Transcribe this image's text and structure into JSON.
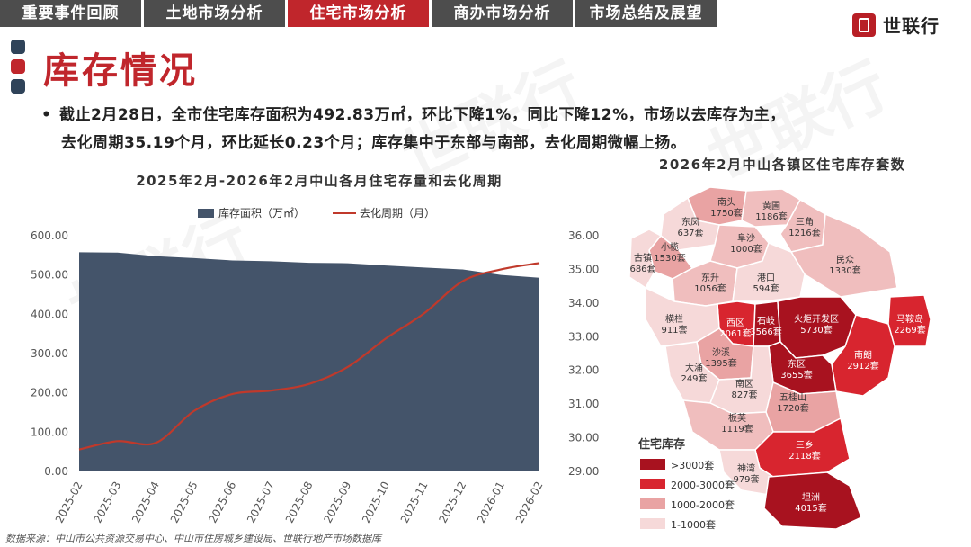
{
  "tabs": [
    {
      "label": "重要事件回顾",
      "active": false
    },
    {
      "label": "土地市场分析",
      "active": false
    },
    {
      "label": "住宅市场分析",
      "active": true
    },
    {
      "label": "商办市场分析",
      "active": false
    },
    {
      "label": "市场总结及展望",
      "active": false
    }
  ],
  "brand": "世联行",
  "page_title": "库存情况",
  "bullet": {
    "line1": "截止2月28日，全市住宅库存面积为492.83万㎡，环比下降1%，同比下降12%，市场以去库存为主，",
    "line2": "去化周期35.19个月，环比延长0.23个月；库存集中于东部与南部，去化周期微幅上扬。"
  },
  "source": "数据来源：中山市公共资源交易中心、中山市住房城乡建设局、世联行地产市场数据库",
  "colors": {
    "accent": "#c0262c",
    "area": "#44546a",
    "line": "#c0392b",
    "tab_bg": "#4d4d4d"
  },
  "chart_data": {
    "type": "area",
    "title": "2025年2月-2026年2月中山各月住宅存量和去化周期",
    "categories": [
      "2025-02",
      "2025-03",
      "2025-04",
      "2025-05",
      "2025-06",
      "2025-07",
      "2025-08",
      "2025-09",
      "2025-10",
      "2025-11",
      "2025-12",
      "2026-01",
      "2026-02"
    ],
    "series": [
      {
        "name": "库存面积（万㎡）",
        "type": "area",
        "axis": "left",
        "values": [
          558,
          557,
          548,
          543,
          537,
          535,
          531,
          530,
          524,
          519,
          514,
          500,
          492.83
        ]
      },
      {
        "name": "去化周期（月）",
        "type": "line",
        "axis": "right",
        "values": [
          29.65,
          29.9,
          29.85,
          30.8,
          31.3,
          31.4,
          31.6,
          32.1,
          32.95,
          33.7,
          34.65,
          35.0,
          35.19
        ]
      }
    ],
    "y_left": {
      "ticks": [
        "0.00",
        "100.00",
        "200.00",
        "300.00",
        "400.00",
        "500.00",
        "600.00"
      ],
      "min": 0,
      "max": 600
    },
    "y_right": {
      "ticks": [
        "29.00",
        "30.00",
        "31.00",
        "32.00",
        "33.00",
        "34.00",
        "35.00",
        "36.00"
      ],
      "min": 29,
      "max": 36
    },
    "legend_position": "top"
  },
  "map": {
    "title": "2026年2月中山各镇区住宅库存套数",
    "legend_title": "住宅库存",
    "legend": [
      {
        "label": ">3000套",
        "color": "#a8121f"
      },
      {
        "label": "2000-3000套",
        "color": "#d8252f"
      },
      {
        "label": "1000-2000套",
        "color": "#e9a3a3"
      },
      {
        "label": "1-1000套",
        "color": "#f6d9d9"
      }
    ],
    "towns": [
      {
        "name": "南头",
        "value": "1750套"
      },
      {
        "name": "黄圃",
        "value": "1186套"
      },
      {
        "name": "东凤",
        "value": "637套"
      },
      {
        "name": "三角",
        "value": "1216套"
      },
      {
        "name": "小榄",
        "value": "1530套"
      },
      {
        "name": "阜沙",
        "value": "1000套"
      },
      {
        "name": "古镇",
        "value": "686套"
      },
      {
        "name": "民众",
        "value": "1330套"
      },
      {
        "name": "东升",
        "value": "1056套"
      },
      {
        "name": "港口",
        "value": "594套"
      },
      {
        "name": "西区",
        "value": "2061套"
      },
      {
        "name": "石岐",
        "value": "3566套"
      },
      {
        "name": "火炬开发区",
        "value": "5730套"
      },
      {
        "name": "马鞍岛",
        "value": "2269套"
      },
      {
        "name": "横栏",
        "value": "911套"
      },
      {
        "name": "沙溪",
        "value": "1395套"
      },
      {
        "name": "南朗",
        "value": "2912套"
      },
      {
        "name": "东区",
        "value": "3655套"
      },
      {
        "name": "大涌",
        "value": "249套"
      },
      {
        "name": "南区",
        "value": "827套"
      },
      {
        "name": "五桂山",
        "value": "1720套"
      },
      {
        "name": "板芙",
        "value": "1119套"
      },
      {
        "name": "三乡",
        "value": "2118套"
      },
      {
        "name": "神湾",
        "value": "979套"
      },
      {
        "name": "坦洲",
        "value": "4015套"
      }
    ]
  }
}
